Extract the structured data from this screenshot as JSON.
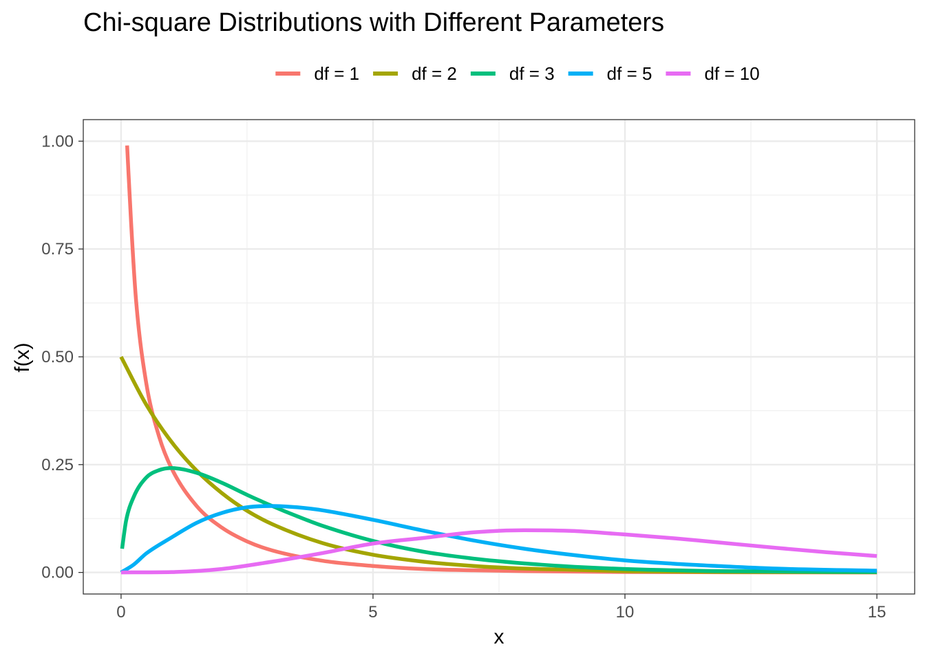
{
  "chart_data": {
    "type": "line",
    "title": "Chi-square Distributions with Different Parameters",
    "xlabel": "x",
    "ylabel": "f(x)",
    "xlim": [
      -0.75,
      15.75
    ],
    "ylim": [
      -0.05,
      1.05
    ],
    "xticks": [
      0,
      5,
      10,
      15
    ],
    "xtick_labels": [
      "0",
      "5",
      "10",
      "15"
    ],
    "yticks": [
      0,
      0.25,
      0.5,
      0.75,
      1
    ],
    "ytick_labels": [
      "0.00",
      "0.25",
      "0.50",
      "0.75",
      "1.00"
    ],
    "grid": true,
    "legend_position": "top",
    "series": [
      {
        "name": "df = 1",
        "color": "#F8766D",
        "x": [
          0.12,
          0.2,
          0.3,
          0.5,
          0.75,
          1,
          1.5,
          2,
          2.5,
          3,
          4,
          5,
          6,
          7,
          8,
          10,
          12,
          15
        ],
        "y": [
          0.99,
          0.808,
          0.627,
          0.439,
          0.317,
          0.242,
          0.154,
          0.104,
          0.072,
          0.051,
          0.027,
          0.015,
          0.008,
          0.005,
          0.003,
          0.001,
          0.0003,
          0.0001
        ]
      },
      {
        "name": "df = 2",
        "color": "#A3A500",
        "x": [
          0,
          0.5,
          1,
          1.5,
          2,
          2.5,
          3,
          4,
          5,
          6,
          7,
          8,
          9,
          10,
          12,
          15
        ],
        "y": [
          0.5,
          0.389,
          0.303,
          0.236,
          0.184,
          0.143,
          0.112,
          0.068,
          0.041,
          0.025,
          0.015,
          0.009,
          0.006,
          0.003,
          0.001,
          0.0003
        ]
      },
      {
        "name": "df = 3",
        "color": "#00BF7D",
        "x": [
          0.02,
          0.1,
          0.25,
          0.5,
          0.75,
          1,
          1.5,
          2,
          2.5,
          3,
          3.5,
          4,
          5,
          6,
          7,
          8,
          9,
          10,
          12,
          15
        ],
        "y": [
          0.055,
          0.12,
          0.175,
          0.22,
          0.237,
          0.242,
          0.231,
          0.208,
          0.18,
          0.154,
          0.13,
          0.108,
          0.073,
          0.048,
          0.032,
          0.021,
          0.013,
          0.008,
          0.003,
          0.001
        ]
      },
      {
        "name": "df = 5",
        "color": "#00B0F6",
        "x": [
          0,
          0.25,
          0.5,
          1,
          1.5,
          2,
          2.5,
          3,
          3.5,
          4,
          5,
          6,
          7,
          8,
          9,
          10,
          11,
          12,
          13,
          15
        ],
        "y": [
          0,
          0.018,
          0.044,
          0.081,
          0.115,
          0.138,
          0.151,
          0.154,
          0.151,
          0.144,
          0.122,
          0.097,
          0.074,
          0.055,
          0.04,
          0.028,
          0.02,
          0.014,
          0.009,
          0.004
        ]
      },
      {
        "name": "df = 10",
        "color": "#E76BF3",
        "x": [
          0,
          1,
          2,
          3,
          4,
          5,
          6,
          7,
          8,
          9,
          10,
          11,
          12,
          13,
          14,
          15
        ],
        "y": [
          0,
          0.0008,
          0.008,
          0.025,
          0.045,
          0.067,
          0.08,
          0.093,
          0.098,
          0.096,
          0.088,
          0.079,
          0.068,
          0.057,
          0.047,
          0.038
        ]
      }
    ]
  }
}
